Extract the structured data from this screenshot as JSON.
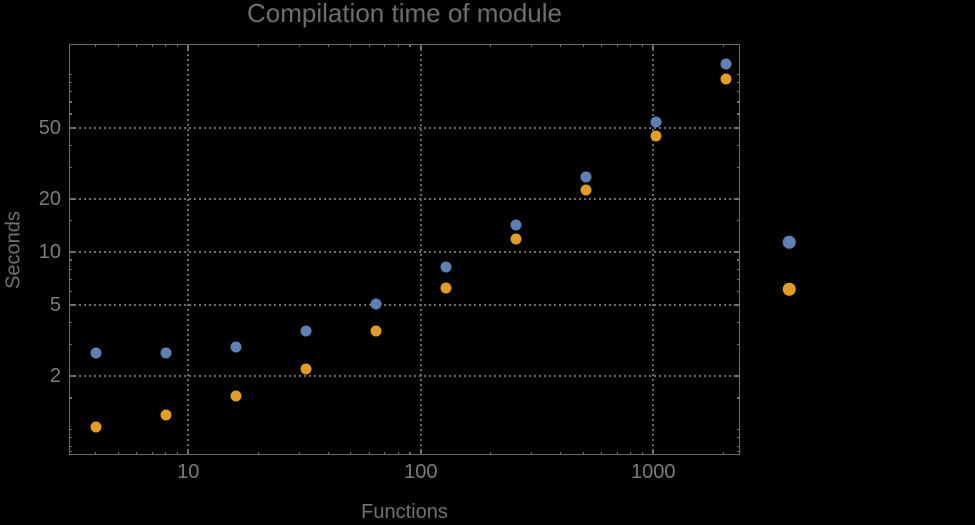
{
  "colors": {
    "background": "#000000",
    "frame": "#696969",
    "gridlines": "#6b6b6b",
    "title_text": "#6e6e6e",
    "tick_text": "#7c7c7c",
    "series1_blue": "#5E81B5",
    "series2_orange": "#E19C24"
  },
  "chart_data": {
    "type": "scatter",
    "title": "Compilation time of module",
    "xlabel": "Functions",
    "ylabel": "Seconds",
    "xscale": "log",
    "yscale": "log",
    "xlim": [
      3.07,
      2360
    ],
    "ylim": [
      0.717,
      148.8
    ],
    "grid": "dotted, at labeled ticks only",
    "legend_position": "right-of-frame, markers only (no visible text)",
    "x": [
      4,
      8,
      16,
      32,
      64,
      128,
      256,
      512,
      1024,
      2048
    ],
    "series": [
      {
        "name": "series-1-blue",
        "color": "#5E81B5",
        "values": [
          2.7,
          2.7,
          2.9,
          3.6,
          5.1,
          8.2,
          14.2,
          26.5,
          54,
          115
        ]
      },
      {
        "name": "series-2-orange",
        "color": "#E19C24",
        "values": [
          1.03,
          1.2,
          1.55,
          2.2,
          3.6,
          6.3,
          11.8,
          22.5,
          45,
          94
        ]
      }
    ],
    "x_ticks": [
      {
        "value": 10,
        "label": "10"
      },
      {
        "value": 100,
        "label": "100"
      },
      {
        "value": 1000,
        "label": "1000"
      }
    ],
    "y_ticks": [
      {
        "value": 2,
        "label": "2"
      },
      {
        "value": 5,
        "label": "5"
      },
      {
        "value": 10,
        "label": "10"
      },
      {
        "value": 20,
        "label": "20"
      },
      {
        "value": 50,
        "label": "50"
      }
    ],
    "x_minor_ticks": [
      4,
      5,
      6,
      7,
      8,
      9,
      20,
      30,
      40,
      50,
      60,
      70,
      80,
      90,
      200,
      300,
      400,
      500,
      600,
      700,
      800,
      900,
      2000
    ],
    "y_minor_ticks": [
      0.75,
      0.8,
      0.9,
      1,
      1.5,
      3,
      4,
      6,
      7,
      8,
      9,
      15,
      30,
      40,
      60,
      70,
      80,
      90,
      100
    ]
  }
}
